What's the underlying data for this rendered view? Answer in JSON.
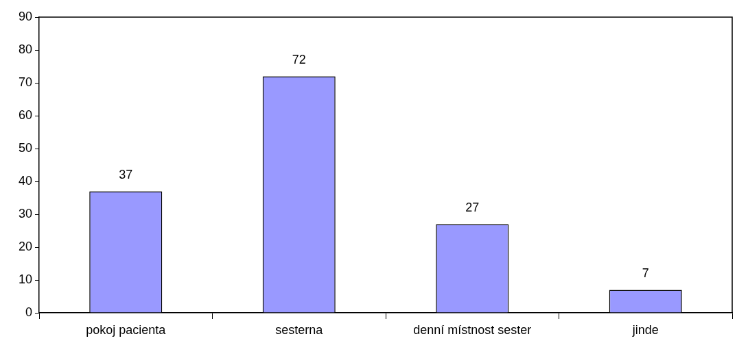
{
  "chart_data": {
    "type": "bar",
    "categories": [
      "pokoj pacienta",
      "sesterna",
      "denní místnost sester",
      "jinde"
    ],
    "values": [
      37,
      72,
      27,
      7
    ],
    "color": "#9999ff",
    "ylim": [
      0,
      90
    ],
    "yticks": [
      0,
      10,
      20,
      30,
      40,
      50,
      60,
      70,
      80,
      90
    ],
    "data_labels": true
  }
}
